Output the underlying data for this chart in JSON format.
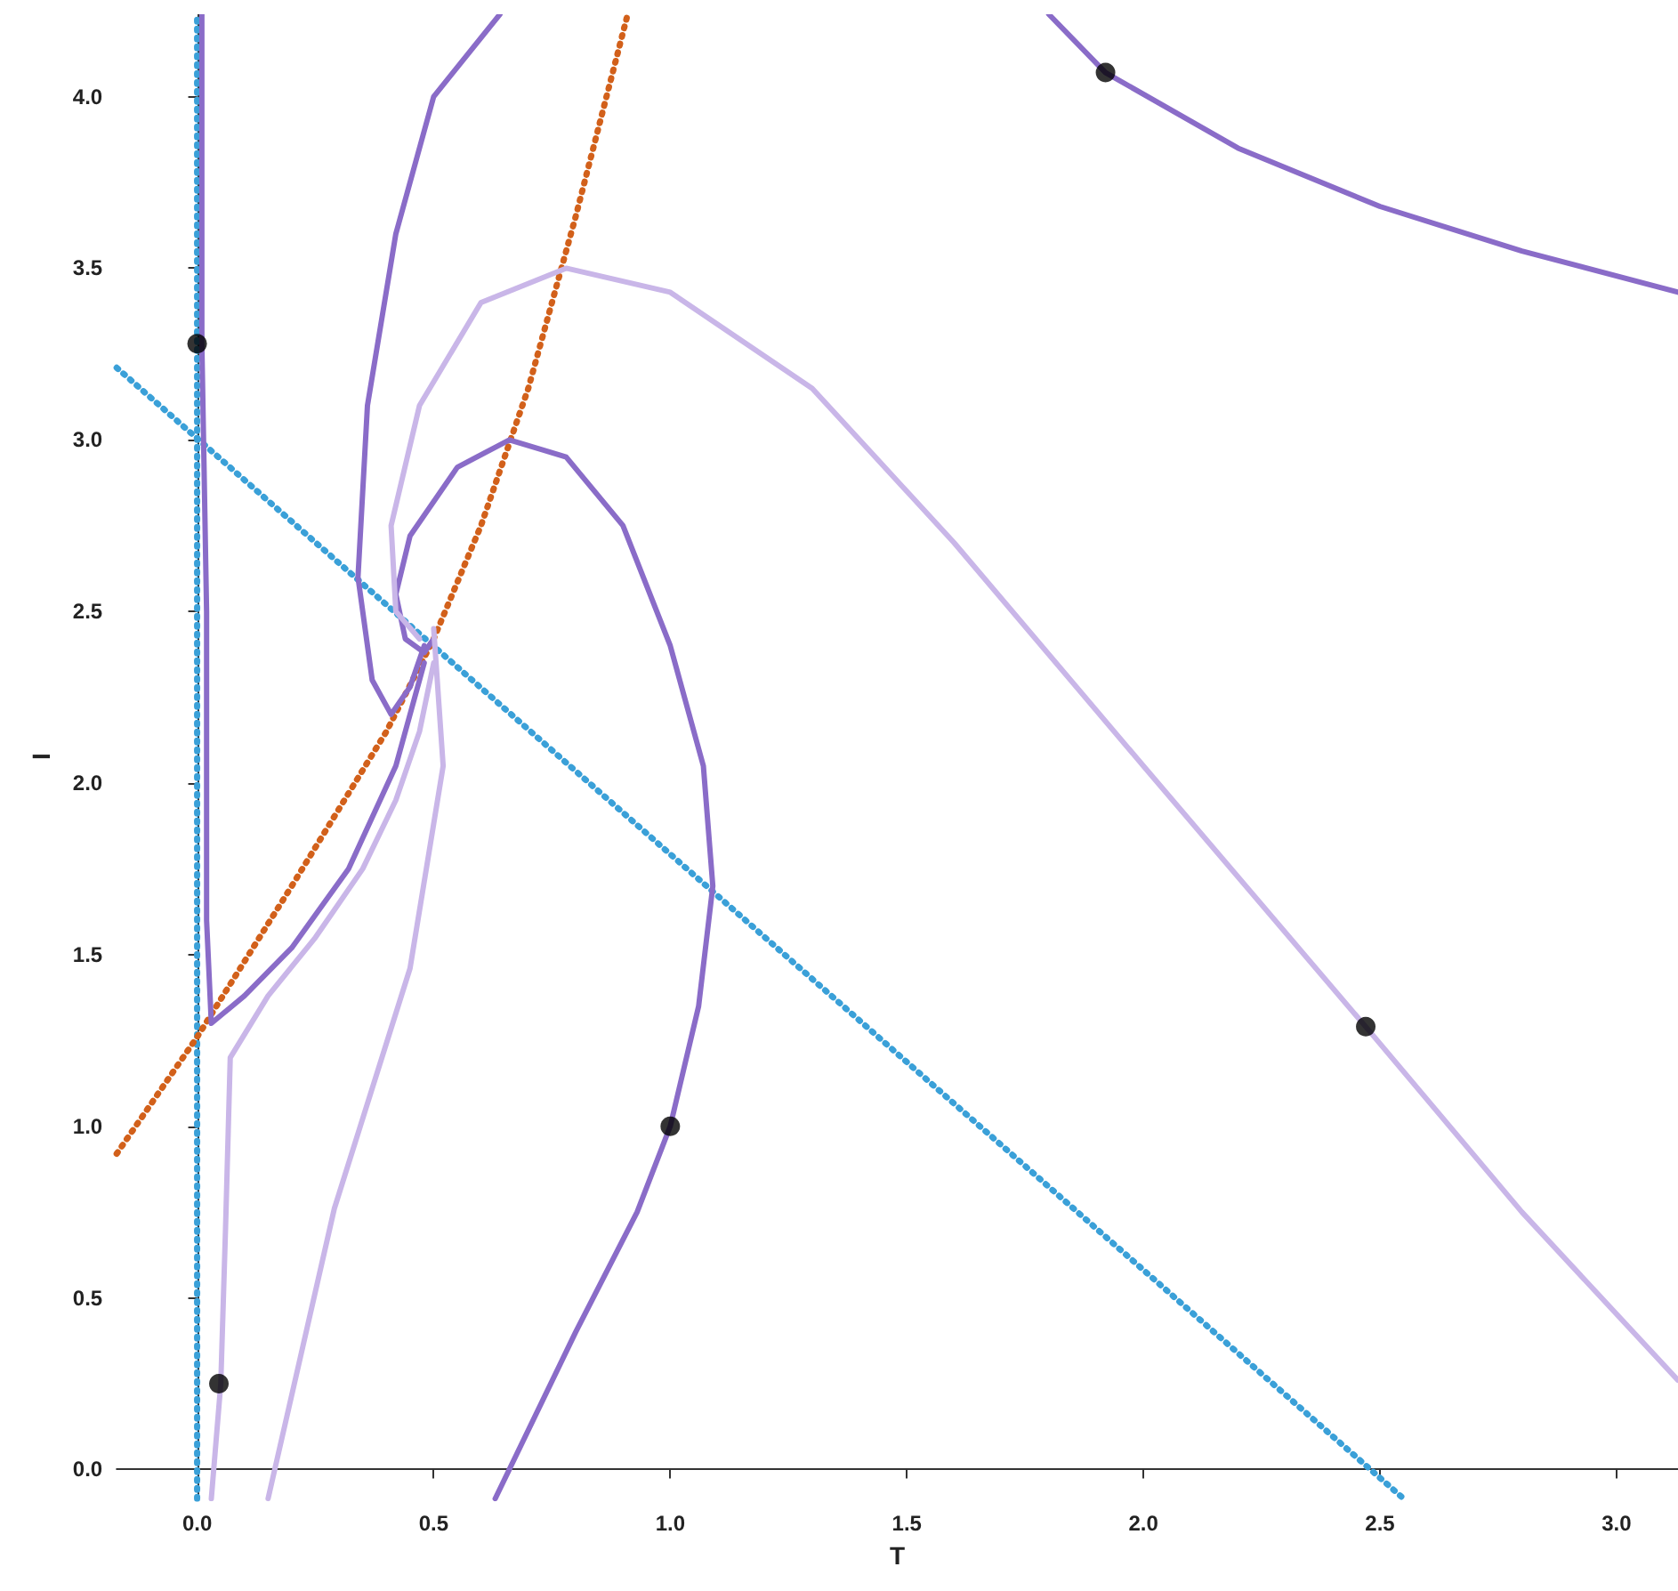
{
  "chart_data": {
    "type": "line",
    "xlabel": "T",
    "ylabel": "I",
    "xlim": [
      -0.17,
      3.13
    ],
    "ylim": [
      -0.085,
      4.24
    ],
    "xticks": [
      {
        "value": 0,
        "label": "0.0"
      },
      {
        "value": 0.5,
        "label": "0.5"
      },
      {
        "value": 1,
        "label": "1.0"
      },
      {
        "value": 1.5,
        "label": "1.5"
      },
      {
        "value": 2,
        "label": "2.0"
      },
      {
        "value": 2.5,
        "label": "2.5"
      },
      {
        "value": 3,
        "label": "3.0"
      }
    ],
    "yticks": [
      {
        "value": 0,
        "label": "0.0"
      },
      {
        "value": 0.5,
        "label": "0.5"
      },
      {
        "value": 1,
        "label": "1.0"
      },
      {
        "value": 1.5,
        "label": "1.5"
      },
      {
        "value": 2,
        "label": "2.0"
      },
      {
        "value": 2.5,
        "label": "2.5"
      },
      {
        "value": 3,
        "label": "3.0"
      },
      {
        "value": 3.5,
        "label": "3.5"
      },
      {
        "value": 4,
        "label": "4.0"
      }
    ],
    "grid": false,
    "marker": "none",
    "line_style": "solid",
    "series": [
      {
        "color": "#3aa0d8",
        "line_style": "dotted",
        "x": [
          -0.17,
          2.55
        ],
        "values": [
          3.21,
          -0.085
        ]
      },
      {
        "color": "#3aa0d8",
        "line_style": "dotted",
        "x": [
          0,
          0
        ],
        "values": [
          -0.085,
          4.24
        ]
      },
      {
        "color": "#d2601a",
        "line_style": "dotted",
        "x": [
          -0.17,
          0,
          0.2,
          0.4,
          0.5,
          0.6,
          0.7,
          0.8,
          0.91
        ],
        "values": [
          0.92,
          1.26,
          1.7,
          2.15,
          2.42,
          2.75,
          3.15,
          3.65,
          4.24
        ]
      },
      {
        "color": "#8a6cc8",
        "x": [
          1.8,
          1.92,
          2.2,
          2.5,
          2.8,
          3.13
        ],
        "values": [
          4.24,
          4.07,
          3.85,
          3.68,
          3.55,
          3.43
        ]
      },
      {
        "color": "#8a6cc8",
        "x": [
          0.63,
          0.8,
          0.93,
          1.0,
          1.06,
          1.09,
          1.07,
          1.0,
          0.9,
          0.78,
          0.66,
          0.55,
          0.45,
          0.42,
          0.44,
          0.48,
          0.5
        ],
        "values": [
          -0.085,
          0.4,
          0.75,
          1.0,
          1.35,
          1.7,
          2.05,
          2.4,
          2.75,
          2.95,
          3.0,
          2.92,
          2.72,
          2.55,
          2.42,
          2.38,
          2.42
        ]
      },
      {
        "color": "#8a6cc8",
        "x": [
          0.64,
          0.5,
          0.42,
          0.36,
          0.34,
          0.37,
          0.41,
          0.45,
          0.48
        ],
        "values": [
          4.24,
          4.0,
          3.6,
          3.1,
          2.6,
          2.3,
          2.2,
          2.28,
          2.4
        ]
      },
      {
        "color": "#8a6cc8",
        "x": [
          0.01,
          0.01,
          0.02,
          0.02,
          0.03,
          0.1,
          0.2,
          0.32,
          0.42,
          0.48
        ],
        "values": [
          4.24,
          3.28,
          2.5,
          1.6,
          1.3,
          1.38,
          1.52,
          1.75,
          2.05,
          2.35
        ]
      },
      {
        "color": "#c9b6e8",
        "x": [
          3.13,
          2.8,
          2.47,
          2.0,
          1.6,
          1.3,
          1.0,
          0.78,
          0.6,
          0.47,
          0.41,
          0.42,
          0.47
        ],
        "values": [
          0.26,
          0.75,
          1.29,
          2.05,
          2.7,
          3.15,
          3.43,
          3.5,
          3.4,
          3.1,
          2.75,
          2.5,
          2.42
        ]
      },
      {
        "color": "#c9b6e8",
        "x": [
          0.03,
          0.05,
          0.06,
          0.07,
          0.15,
          0.25,
          0.35,
          0.42,
          0.47,
          0.5
        ],
        "values": [
          -0.085,
          0.25,
          0.7,
          1.2,
          1.38,
          1.55,
          1.75,
          1.95,
          2.15,
          2.35
        ]
      },
      {
        "color": "#c9b6e8",
        "x": [
          0.15,
          0.29,
          0.45,
          0.52,
          0.5
        ],
        "values": [
          -0.085,
          0.76,
          1.46,
          2.05,
          2.45
        ]
      },
      {
        "type": "scatter",
        "color": "#000000",
        "marker": "circle",
        "x": [
          0.0,
          1.0,
          0.046,
          1.92,
          2.47
        ],
        "values": [
          3.28,
          1.0,
          0.25,
          4.07,
          1.29
        ]
      }
    ]
  }
}
